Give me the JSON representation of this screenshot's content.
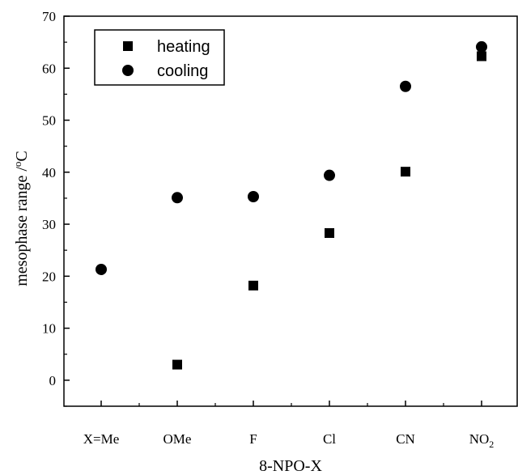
{
  "chart_data": {
    "type": "scatter",
    "categories": [
      "X=Me",
      "OMe",
      "F",
      "Cl",
      "CN",
      "NO"
    ],
    "category_subscripts": [
      "",
      "",
      "",
      "",
      "",
      "2"
    ],
    "xlabel": "8-NPO-X",
    "ylabel": "mesophase range /",
    "ylabel_unit_sup": "o",
    "ylabel_unit": "C",
    "ylim": [
      -5,
      70
    ],
    "yticks": [
      "0",
      "10",
      "20",
      "30",
      "40",
      "50",
      "60",
      "70"
    ],
    "legend_position": "top-left",
    "series": [
      {
        "name": "heating",
        "marker": "square",
        "values": [
          null,
          3,
          18.2,
          28.3,
          40.1,
          62.3
        ]
      },
      {
        "name": "cooling",
        "marker": "circle",
        "values": [
          21.3,
          35.1,
          35.3,
          39.4,
          56.5,
          64.1
        ]
      }
    ]
  }
}
